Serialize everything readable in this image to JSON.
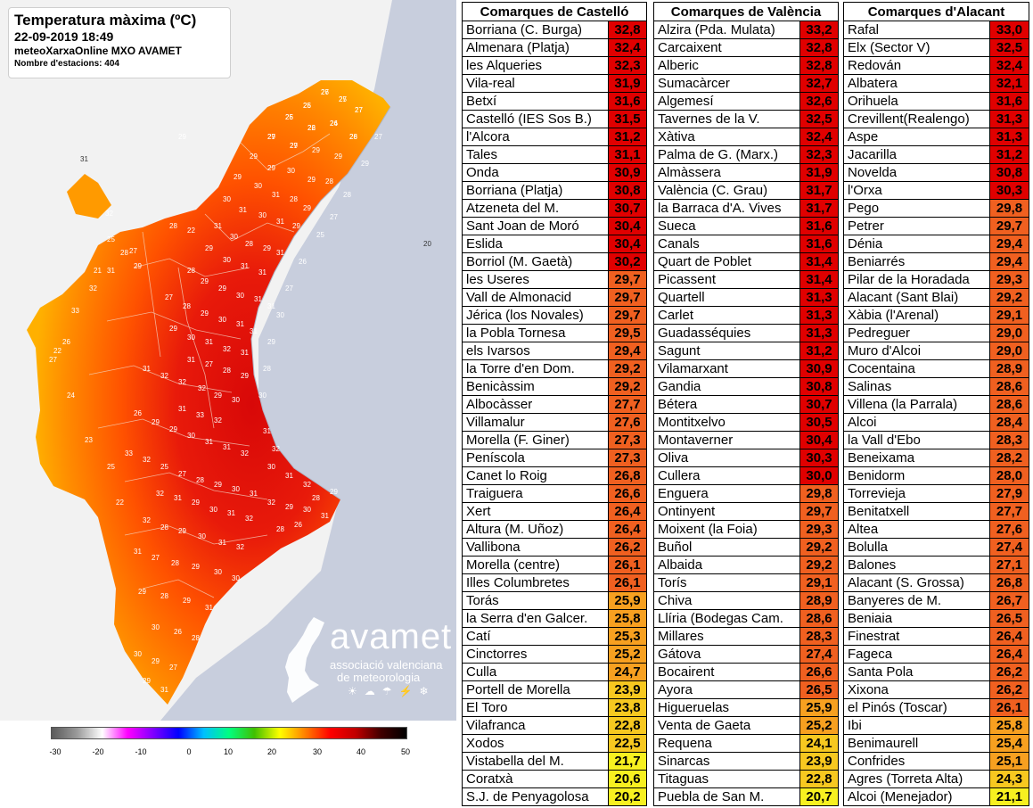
{
  "map": {
    "title": "Temperatura màxima (ºC)",
    "datetime": "22-09-2019 18:49",
    "source": "meteoXarxaOnline MXO AVAMET",
    "stations_label": "Nombre d'estacions: 404",
    "logo": {
      "name": "avamet",
      "subtitle_line1": "associació valenciana",
      "subtitle_line2": "de meteorologia",
      "weather_icons": "sun-icon cloud-icon rain-icon storm-icon snow-icon"
    },
    "scale": {
      "labels": [
        "-30",
        "-20",
        "-10",
        "0",
        "10",
        "20",
        "30",
        "40",
        "50"
      ],
      "colors": [
        "#5a5a5a",
        "#9a9a9a",
        "#ffffff",
        "#ff00ff",
        "#8000ff",
        "#0000ff",
        "#00c0ff",
        "#00ff80",
        "#40c000",
        "#ffff00",
        "#ff8000",
        "#ff0000",
        "#c00000",
        "#400000",
        "#000000"
      ]
    },
    "station_labels": [
      "27",
      "26",
      "25",
      "27",
      "25",
      "26",
      "26",
      "28",
      "29",
      "27",
      "29",
      "29",
      "29",
      "29",
      "30",
      "29",
      "28",
      "29",
      "30",
      "31",
      "28",
      "29",
      "30",
      "31",
      "30",
      "31",
      "29",
      "31",
      "30",
      "28",
      "29",
      "31",
      "29",
      "30",
      "31",
      "31",
      "28",
      "29",
      "29",
      "30",
      "31",
      "31",
      "27",
      "28",
      "29",
      "30",
      "31",
      "31",
      "29",
      "30",
      "31",
      "32",
      "31",
      "31",
      "27",
      "28",
      "29",
      "31",
      "32",
      "32",
      "32",
      "29",
      "30",
      "31",
      "33",
      "32",
      "26",
      "29",
      "29",
      "30",
      "31",
      "31",
      "32",
      "33",
      "32",
      "25",
      "27",
      "28",
      "29",
      "30",
      "31",
      "32",
      "31",
      "29",
      "30",
      "31",
      "32",
      "32",
      "28",
      "29",
      "30",
      "31",
      "32",
      "31",
      "27",
      "28",
      "29",
      "30",
      "30",
      "29",
      "28",
      "29",
      "31",
      "30",
      "26",
      "28",
      "30",
      "29",
      "27",
      "29",
      "31",
      "32",
      "29",
      "30",
      "31",
      "28",
      "26",
      "28",
      "29",
      "30",
      "31",
      "32",
      "31",
      "32",
      "30",
      "28",
      "29",
      "30",
      "27",
      "26",
      "25",
      "27",
      "28",
      "29",
      "27",
      "28",
      "29",
      "31",
      "32",
      "33",
      "26",
      "27",
      "29",
      "31",
      "32",
      "25",
      "27",
      "28",
      "22",
      "20",
      "21",
      "22",
      "24",
      "23",
      "25",
      "22",
      "26",
      "25",
      "27",
      "27",
      "26",
      "22",
      "24",
      "26",
      "27",
      "29"
    ],
    "land_colors": {
      "coast_red": "#e01010",
      "mid_orange": "#ff5a00",
      "inland_orange": "#ff8c00",
      "yellow": "#ffc000",
      "sea": "#c8cedd",
      "outside": "#f2f2f2"
    }
  },
  "castello": {
    "header": "Comarques de Castelló",
    "rows": [
      {
        "name": "Borriana (C. Burga)",
        "value": "32,8",
        "color": "#e00000"
      },
      {
        "name": "Almenara (Platja)",
        "value": "32,4",
        "color": "#e00000"
      },
      {
        "name": "les Alqueries",
        "value": "32,3",
        "color": "#e00000"
      },
      {
        "name": "Vila-real",
        "value": "31,9",
        "color": "#e00000"
      },
      {
        "name": "Betxí",
        "value": "31,6",
        "color": "#e00000"
      },
      {
        "name": "Castelló (IES Sos B.)",
        "value": "31,5",
        "color": "#e00000"
      },
      {
        "name": "l'Alcora",
        "value": "31,2",
        "color": "#e00000"
      },
      {
        "name": "Tales",
        "value": "31,1",
        "color": "#e00000"
      },
      {
        "name": "Onda",
        "value": "30,9",
        "color": "#e00000"
      },
      {
        "name": "Borriana (Platja)",
        "value": "30,8",
        "color": "#e00000"
      },
      {
        "name": "Atzeneta del M.",
        "value": "30,7",
        "color": "#e00000"
      },
      {
        "name": "Sant Joan de Moró",
        "value": "30,4",
        "color": "#e00000"
      },
      {
        "name": "Eslida",
        "value": "30,4",
        "color": "#e00000"
      },
      {
        "name": "Borriol (M. Gaetà)",
        "value": "30,2",
        "color": "#e00000"
      },
      {
        "name": "les Useres",
        "value": "29,7",
        "color": "#f06020"
      },
      {
        "name": "Vall de Almonacid",
        "value": "29,7",
        "color": "#f06020"
      },
      {
        "name": "Jérica (los Novales)",
        "value": "29,7",
        "color": "#f06020"
      },
      {
        "name": "la Pobla Tornesa",
        "value": "29,5",
        "color": "#f06020"
      },
      {
        "name": "els Ivarsos",
        "value": "29,4",
        "color": "#f06020"
      },
      {
        "name": "la Torre d'en Dom.",
        "value": "29,2",
        "color": "#f06020"
      },
      {
        "name": "Benicàssim",
        "value": "29,2",
        "color": "#f06020"
      },
      {
        "name": "Albocàsser",
        "value": "27,7",
        "color": "#f06020"
      },
      {
        "name": "Villamalur",
        "value": "27,6",
        "color": "#f06020"
      },
      {
        "name": "Morella (F. Giner)",
        "value": "27,3",
        "color": "#f06020"
      },
      {
        "name": "Peníscola",
        "value": "27,3",
        "color": "#f06020"
      },
      {
        "name": "Canet lo Roig",
        "value": "26,8",
        "color": "#f06020"
      },
      {
        "name": "Traiguera",
        "value": "26,6",
        "color": "#f06020"
      },
      {
        "name": "Xert",
        "value": "26,4",
        "color": "#f06020"
      },
      {
        "name": "Altura (M. Uñoz)",
        "value": "26,4",
        "color": "#f06020"
      },
      {
        "name": "Vallibona",
        "value": "26,2",
        "color": "#f06020"
      },
      {
        "name": "Morella (centre)",
        "value": "26,1",
        "color": "#f06020"
      },
      {
        "name": "Illes Columbretes",
        "value": "26,1",
        "color": "#f06020"
      },
      {
        "name": "Torás",
        "value": "25,9",
        "color": "#f7a020"
      },
      {
        "name": "la Serra d'en Galcer.",
        "value": "25,8",
        "color": "#f7a020"
      },
      {
        "name": "Catí",
        "value": "25,3",
        "color": "#f7a020"
      },
      {
        "name": "Cinctorres",
        "value": "25,2",
        "color": "#f7a020"
      },
      {
        "name": "Culla",
        "value": "24,7",
        "color": "#f7a020"
      },
      {
        "name": "Portell de Morella",
        "value": "23,9",
        "color": "#f7c820"
      },
      {
        "name": "El Toro",
        "value": "23,8",
        "color": "#f7c820"
      },
      {
        "name": "Vilafranca",
        "value": "22,8",
        "color": "#f7c820"
      },
      {
        "name": "Xodos",
        "value": "22,5",
        "color": "#f7c820"
      },
      {
        "name": "Vistabella del M.",
        "value": "21,7",
        "color": "#f7f020"
      },
      {
        "name": "Coratxà",
        "value": "20,6",
        "color": "#f7f020"
      },
      {
        "name": "S.J. de Penyagolosa",
        "value": "20,2",
        "color": "#f7f020"
      }
    ]
  },
  "valencia": {
    "header": "Comarques de València",
    "rows": [
      {
        "name": "Alzira (Pda. Mulata)",
        "value": "33,2",
        "color": "#e00000"
      },
      {
        "name": "Carcaixent",
        "value": "32,8",
        "color": "#e00000"
      },
      {
        "name": "Alberic",
        "value": "32,8",
        "color": "#e00000"
      },
      {
        "name": "Sumacàrcer",
        "value": "32,7",
        "color": "#e00000"
      },
      {
        "name": "Algemesí",
        "value": "32,6",
        "color": "#e00000"
      },
      {
        "name": "Tavernes de la V.",
        "value": "32,5",
        "color": "#e00000"
      },
      {
        "name": "Xàtiva",
        "value": "32,4",
        "color": "#e00000"
      },
      {
        "name": "Palma de G. (Marx.)",
        "value": "32,3",
        "color": "#e00000"
      },
      {
        "name": "Almàssera",
        "value": "31,9",
        "color": "#e00000"
      },
      {
        "name": "València (C. Grau)",
        "value": "31,7",
        "color": "#e00000"
      },
      {
        "name": "la Barraca d'A. Vives",
        "value": "31,7",
        "color": "#e00000"
      },
      {
        "name": "Sueca",
        "value": "31,6",
        "color": "#e00000"
      },
      {
        "name": "Canals",
        "value": "31,6",
        "color": "#e00000"
      },
      {
        "name": "Quart de Poblet",
        "value": "31,4",
        "color": "#e00000"
      },
      {
        "name": "Picassent",
        "value": "31,4",
        "color": "#e00000"
      },
      {
        "name": "Quartell",
        "value": "31,3",
        "color": "#e00000"
      },
      {
        "name": "Carlet",
        "value": "31,3",
        "color": "#e00000"
      },
      {
        "name": "Guadasséquies",
        "value": "31,3",
        "color": "#e00000"
      },
      {
        "name": "Sagunt",
        "value": "31,2",
        "color": "#e00000"
      },
      {
        "name": "Vilamarxant",
        "value": "30,9",
        "color": "#e00000"
      },
      {
        "name": "Gandia",
        "value": "30,8",
        "color": "#e00000"
      },
      {
        "name": "Bétera",
        "value": "30,7",
        "color": "#e00000"
      },
      {
        "name": "Montitxelvo",
        "value": "30,5",
        "color": "#e00000"
      },
      {
        "name": "Montaverner",
        "value": "30,4",
        "color": "#e00000"
      },
      {
        "name": "Oliva",
        "value": "30,3",
        "color": "#e00000"
      },
      {
        "name": "Cullera",
        "value": "30,0",
        "color": "#e00000"
      },
      {
        "name": "Enguera",
        "value": "29,8",
        "color": "#f06020"
      },
      {
        "name": "Ontinyent",
        "value": "29,7",
        "color": "#f06020"
      },
      {
        "name": "Moixent (la Foia)",
        "value": "29,3",
        "color": "#f06020"
      },
      {
        "name": "Buñol",
        "value": "29,2",
        "color": "#f06020"
      },
      {
        "name": "Albaida",
        "value": "29,2",
        "color": "#f06020"
      },
      {
        "name": "Torís",
        "value": "29,1",
        "color": "#f06020"
      },
      {
        "name": "Chiva",
        "value": "28,9",
        "color": "#f06020"
      },
      {
        "name": "Llíria (Bodegas Cam.",
        "value": "28,6",
        "color": "#f06020"
      },
      {
        "name": "Millares",
        "value": "28,3",
        "color": "#f06020"
      },
      {
        "name": "Gátova",
        "value": "27,4",
        "color": "#f06020"
      },
      {
        "name": "Bocairent",
        "value": "26,6",
        "color": "#f06020"
      },
      {
        "name": "Ayora",
        "value": "26,5",
        "color": "#f06020"
      },
      {
        "name": "Higueruelas",
        "value": "25,9",
        "color": "#f7a020"
      },
      {
        "name": "Venta de Gaeta",
        "value": "25,2",
        "color": "#f7a020"
      },
      {
        "name": "Requena",
        "value": "24,1",
        "color": "#f7c820"
      },
      {
        "name": "Sinarcas",
        "value": "23,9",
        "color": "#f7c820"
      },
      {
        "name": "Titaguas",
        "value": "22,8",
        "color": "#f7c820"
      },
      {
        "name": "Puebla de San M.",
        "value": "20,7",
        "color": "#f7f020"
      }
    ]
  },
  "alacant": {
    "header": "Comarques d'Alacant",
    "rows": [
      {
        "name": "Rafal",
        "value": "33,0",
        "color": "#e00000"
      },
      {
        "name": "Elx (Sector V)",
        "value": "32,5",
        "color": "#e00000"
      },
      {
        "name": "Redován",
        "value": "32,4",
        "color": "#e00000"
      },
      {
        "name": "Albatera",
        "value": "32,1",
        "color": "#e00000"
      },
      {
        "name": "Orihuela",
        "value": "31,6",
        "color": "#e00000"
      },
      {
        "name": "Crevillent(Realengo)",
        "value": "31,3",
        "color": "#e00000"
      },
      {
        "name": "Aspe",
        "value": "31,3",
        "color": "#e00000"
      },
      {
        "name": "Jacarilla",
        "value": "31,2",
        "color": "#e00000"
      },
      {
        "name": "Novelda",
        "value": "30,8",
        "color": "#e00000"
      },
      {
        "name": "l'Orxa",
        "value": "30,3",
        "color": "#e00000"
      },
      {
        "name": "Pego",
        "value": "29,8",
        "color": "#f06020"
      },
      {
        "name": "Petrer",
        "value": "29,7",
        "color": "#f06020"
      },
      {
        "name": "Dénia",
        "value": "29,4",
        "color": "#f06020"
      },
      {
        "name": "Beniarrés",
        "value": "29,4",
        "color": "#f06020"
      },
      {
        "name": "Pilar de la Horadada",
        "value": "29,3",
        "color": "#f06020"
      },
      {
        "name": "Alacant (Sant Blai)",
        "value": "29,2",
        "color": "#f06020"
      },
      {
        "name": "Xàbia (l'Arenal)",
        "value": "29,1",
        "color": "#f06020"
      },
      {
        "name": "Pedreguer",
        "value": "29,0",
        "color": "#f06020"
      },
      {
        "name": "Muro d'Alcoi",
        "value": "29,0",
        "color": "#f06020"
      },
      {
        "name": "Cocentaina",
        "value": "28,9",
        "color": "#f06020"
      },
      {
        "name": "Salinas",
        "value": "28,6",
        "color": "#f06020"
      },
      {
        "name": "Villena (la Parrala)",
        "value": "28,6",
        "color": "#f06020"
      },
      {
        "name": "Alcoi",
        "value": "28,4",
        "color": "#f06020"
      },
      {
        "name": "la Vall d'Ebo",
        "value": "28,3",
        "color": "#f06020"
      },
      {
        "name": "Beneixama",
        "value": "28,2",
        "color": "#f06020"
      },
      {
        "name": "Benidorm",
        "value": "28,0",
        "color": "#f06020"
      },
      {
        "name": "Torrevieja",
        "value": "27,9",
        "color": "#f06020"
      },
      {
        "name": "Benitatxell",
        "value": "27,7",
        "color": "#f06020"
      },
      {
        "name": "Altea",
        "value": "27,6",
        "color": "#f06020"
      },
      {
        "name": "Bolulla",
        "value": "27,4",
        "color": "#f06020"
      },
      {
        "name": "Balones",
        "value": "27,1",
        "color": "#f06020"
      },
      {
        "name": "Alacant (S. Grossa)",
        "value": "26,8",
        "color": "#f06020"
      },
      {
        "name": "Banyeres de M.",
        "value": "26,7",
        "color": "#f06020"
      },
      {
        "name": "Beniaia",
        "value": "26,5",
        "color": "#f06020"
      },
      {
        "name": "Finestrat",
        "value": "26,4",
        "color": "#f06020"
      },
      {
        "name": "Fageca",
        "value": "26,4",
        "color": "#f06020"
      },
      {
        "name": "Santa Pola",
        "value": "26,2",
        "color": "#f06020"
      },
      {
        "name": "Xixona",
        "value": "26,2",
        "color": "#f06020"
      },
      {
        "name": "el Pinós (Toscar)",
        "value": "26,1",
        "color": "#f06020"
      },
      {
        "name": "Ibi",
        "value": "25,8",
        "color": "#f7a020"
      },
      {
        "name": "Benimaurell",
        "value": "25,4",
        "color": "#f7a020"
      },
      {
        "name": "Confrides",
        "value": "25,1",
        "color": "#f7a020"
      },
      {
        "name": "Agres (Torreta Alta)",
        "value": "24,3",
        "color": "#f7c820"
      },
      {
        "name": "Alcoi (Menejador)",
        "value": "21,1",
        "color": "#f7f020"
      }
    ]
  }
}
